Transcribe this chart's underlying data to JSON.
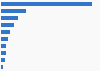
{
  "values": [
    100,
    28,
    19,
    14,
    10,
    8,
    6,
    5,
    4,
    2
  ],
  "bar_color": "#3375c8",
  "background_color": "#f9f9f9",
  "grid_color": "#e0e0e0",
  "ylim": [
    -0.5,
    9.5
  ],
  "xlim": [
    0,
    108
  ],
  "bar_height": 0.55
}
